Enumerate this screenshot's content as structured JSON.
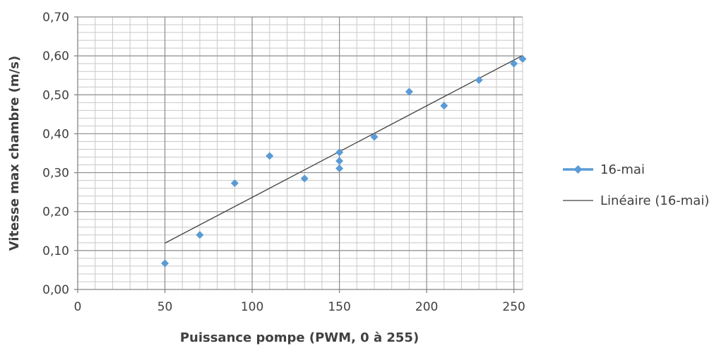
{
  "chart_data": {
    "type": "scatter",
    "xlabel": "Puissance pompe (PWM, 0 à 255)",
    "ylabel": "Vitesse max chambre (m/s)",
    "xlim": [
      0,
      255
    ],
    "ylim": [
      0,
      0.7
    ],
    "x_ticks": [
      0,
      50,
      100,
      150,
      200,
      250
    ],
    "x_tick_labels": [
      "0",
      "50",
      "100",
      "150",
      "200",
      "250"
    ],
    "y_ticks": [
      0,
      0.1,
      0.2,
      0.3,
      0.4,
      0.5,
      0.6,
      0.7
    ],
    "y_tick_labels": [
      "0,00",
      "0,10",
      "0,20",
      "0,30",
      "0,40",
      "0,50",
      "0,60",
      "0,70"
    ],
    "grid": {
      "major": true,
      "minor": true
    },
    "legend_position": "right",
    "series": [
      {
        "name": "16-mai",
        "type": "scatter",
        "marker": "diamond",
        "color": "#5b9bd5",
        "x": [
          50,
          70,
          90,
          110,
          130,
          150,
          150,
          150,
          170,
          190,
          210,
          230,
          250,
          255
        ],
        "y": [
          0.067,
          0.14,
          0.273,
          0.343,
          0.285,
          0.352,
          0.33,
          0.311,
          0.392,
          0.508,
          0.472,
          0.538,
          0.58,
          0.592
        ]
      },
      {
        "name": "Linéaire (16-mai)",
        "type": "line",
        "color": "#404040",
        "x": [
          50,
          255
        ],
        "y": [
          0.119,
          0.601
        ]
      }
    ]
  }
}
